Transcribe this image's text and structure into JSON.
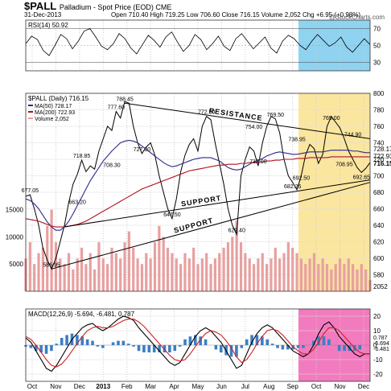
{
  "header": {
    "symbol": "$PALL",
    "subtitle": "Palladium - Spot Price (EOD)  CME",
    "date": "31-Dec-2013",
    "ohlc": "Open 710.40  High 719.25  Low 706.60  Close 716.15  Volume 2,052  Chg +6.95 (+0.98%)",
    "brand": "@StockCharts.com"
  },
  "colors": {
    "price": "#000000",
    "ma50": "#2a2a8c",
    "ma200": "#b01020",
    "volume": "#e8a0a0",
    "rsi_zone": "#8fd3f0",
    "price_zone": "#fbe6a0",
    "macd_zone": "#f27bbf",
    "macd_hist": "#3b7fc4",
    "macd_signal": "#d02020"
  },
  "chart_data": [
    {
      "type": "line",
      "name": "rsi",
      "label": "RSI(14) 50.92",
      "ylim": [
        20,
        80
      ],
      "y_ticks": [
        30,
        50,
        70
      ],
      "overbought": 70,
      "oversold": 30,
      "series": [
        {
          "name": "RSI(14)",
          "values": [
            52,
            61,
            57,
            44,
            38,
            50,
            63,
            58,
            46,
            55,
            67,
            70,
            60,
            49,
            45,
            52,
            64,
            58,
            47,
            40,
            51,
            62,
            56,
            48,
            60,
            66,
            54,
            43,
            50,
            63,
            57,
            45,
            52,
            61,
            49,
            44,
            58,
            64,
            55,
            46,
            53,
            60,
            47,
            41,
            55,
            62,
            58,
            50,
            45,
            55,
            63,
            56,
            49,
            53,
            60,
            48,
            42,
            50,
            58,
            51
          ]
        }
      ]
    },
    {
      "type": "line",
      "name": "price",
      "label": "$PALL (Daily) 716.15",
      "ylim": [
        560,
        800
      ],
      "y_ticks": [
        580,
        600,
        620,
        640,
        660,
        680,
        700,
        720,
        740,
        760,
        780,
        800
      ],
      "x_ticks": [
        "Oct",
        "Nov",
        "Dec",
        "2013",
        "Feb",
        "Mar",
        "Apr",
        "May",
        "Jun",
        "Jul",
        "Aug",
        "Sep",
        "Oct",
        "Nov",
        "Dec"
      ],
      "legend": [
        {
          "name": "MA(50) 728.17",
          "color": "#2a2a8c"
        },
        {
          "name": "MA(200) 722.93",
          "color": "#b01020"
        },
        {
          "name": "Volume 2,052",
          "color": "#e8a0a0"
        }
      ],
      "series": [
        {
          "name": "$PALL",
          "values": [
            675,
            677,
            660,
            640,
            612,
            598,
            587,
            600,
            620,
            640,
            668,
            690,
            702,
            719,
            705,
            712,
            708,
            730,
            745,
            760,
            755,
            778,
            770,
            790,
            788,
            760,
            740,
            727,
            735,
            740,
            725,
            700,
            680,
            660,
            648,
            672,
            705,
            725,
            738,
            745,
            730,
            760,
            772,
            768,
            740,
            715,
            690,
            660,
            640,
            629,
            700,
            720,
            735,
            730,
            712,
            740,
            760,
            772,
            769,
            752,
            720,
            700,
            692,
            683,
            700,
            725,
            738,
            733,
            715,
            726,
            760,
            772,
            765,
            758,
            745,
            730,
            720,
            710,
            704,
            709,
            716
          ]
        },
        {
          "name": "MA(50)",
          "values": [
            672,
            670,
            666,
            660,
            652,
            644,
            638,
            634,
            634,
            638,
            645,
            654,
            664,
            674,
            684,
            694,
            702,
            710,
            718,
            724,
            730,
            735,
            740,
            742,
            743,
            742,
            740,
            736,
            732,
            728,
            724,
            720,
            716,
            713,
            711,
            712,
            714,
            716,
            718,
            720,
            721,
            722,
            722,
            722,
            720,
            718,
            714,
            710,
            708,
            707,
            708,
            711,
            714,
            717,
            719,
            721,
            724,
            726,
            728,
            729,
            728,
            727,
            726,
            726,
            727,
            728,
            729,
            729,
            729,
            729,
            730,
            731,
            731,
            731,
            731,
            731,
            730,
            730,
            729,
            728,
            728
          ]
        },
        {
          "name": "MA(200)",
          "values": [
            648,
            647,
            646,
            645,
            643,
            641,
            639,
            638,
            638,
            638,
            639,
            640,
            641,
            643,
            645,
            648,
            651,
            654,
            657,
            660,
            663,
            666,
            669,
            672,
            675,
            678,
            681,
            684,
            686,
            688,
            690,
            692,
            694,
            696,
            698,
            700,
            702,
            704,
            706,
            707,
            708,
            709,
            710,
            711,
            712,
            713,
            713,
            714,
            714,
            714,
            715,
            715,
            716,
            716,
            717,
            717,
            718,
            718,
            719,
            719,
            720,
            720,
            720,
            721,
            721,
            721,
            722,
            722,
            722,
            722,
            722,
            723,
            723,
            723,
            723,
            723,
            723,
            723,
            723,
            723,
            723
          ]
        }
      ],
      "volume_ylim": [
        0,
        20000
      ],
      "volume_ticks": [
        5000,
        10000,
        15000
      ],
      "volume_last_label": "2052",
      "volume": [
        6000,
        9000,
        5000,
        7000,
        8000,
        12000,
        15000,
        9000,
        6000,
        5000,
        7000,
        4000,
        6000,
        8000,
        5000,
        7000,
        4000,
        9000,
        6000,
        5000,
        8000,
        7000,
        6000,
        9000,
        11000,
        8000,
        6000,
        5000,
        7000,
        6000,
        9000,
        12000,
        10000,
        8000,
        7000,
        6000,
        5000,
        7000,
        6000,
        8000,
        5000,
        6000,
        7000,
        5000,
        6000,
        7000,
        8000,
        9000,
        10000,
        13000,
        9000,
        7000,
        6000,
        5000,
        6000,
        7000,
        5000,
        6000,
        8000,
        6000,
        7000,
        9000,
        8000,
        7000,
        6000,
        5000,
        6000,
        7000,
        5000,
        6000,
        5000,
        4000,
        5000,
        6000,
        5000,
        6000,
        5000,
        4000,
        5000,
        4000,
        2052
      ],
      "annotations": [
        {
          "text": "677.05",
          "x": 1,
          "y": 677
        },
        {
          "text": "586.95",
          "x": 6,
          "y": 587
        },
        {
          "text": "663.20",
          "x": 12,
          "y": 663
        },
        {
          "text": "718.85",
          "x": 13,
          "y": 719
        },
        {
          "text": "777.60",
          "x": 21,
          "y": 778
        },
        {
          "text": "788.45",
          "x": 23,
          "y": 788
        },
        {
          "text": "708.30",
          "x": 20,
          "y": 708
        },
        {
          "text": "727.30",
          "x": 27,
          "y": 727
        },
        {
          "text": "647.50",
          "x": 34,
          "y": 648
        },
        {
          "text": "772.50",
          "x": 42,
          "y": 772
        },
        {
          "text": "629.40",
          "x": 49,
          "y": 629
        },
        {
          "text": "754.00",
          "x": 53,
          "y": 754
        },
        {
          "text": "712.00",
          "x": 54,
          "y": 712
        },
        {
          "text": "769.50",
          "x": 58,
          "y": 769
        },
        {
          "text": "738.95",
          "x": 63,
          "y": 739
        },
        {
          "text": "682.25",
          "x": 62,
          "y": 682
        },
        {
          "text": "692.50",
          "x": 64,
          "y": 692
        },
        {
          "text": "765.00",
          "x": 71,
          "y": 765
        },
        {
          "text": "744.90",
          "x": 76,
          "y": 745
        },
        {
          "text": "708.95",
          "x": 74,
          "y": 709
        },
        {
          "text": "692.65",
          "x": 78,
          "y": 693
        }
      ],
      "trendlines": [
        {
          "label": "RESISTANCE",
          "from": [
            23,
            788
          ],
          "to": [
            80,
            745
          ]
        },
        {
          "label": "SUPPORT",
          "from": [
            9,
            638
          ],
          "to": [
            80,
            695
          ]
        },
        {
          "label": "SUPPORT",
          "from": [
            6,
            587
          ],
          "to": [
            80,
            692
          ]
        }
      ],
      "last_value_labels": [
        "728.17",
        "722.93",
        "716.15"
      ]
    },
    {
      "type": "line",
      "name": "macd",
      "label": "MACD(12,26,9) -5.694, -6.481, 0.787",
      "ylim": [
        -25,
        25
      ],
      "y_ticks": [
        -20,
        -10,
        0,
        10,
        20
      ],
      "series": [
        {
          "name": "MACD",
          "values": [
            5,
            2,
            -4,
            -10,
            -16,
            -18,
            -14,
            -8,
            -2,
            4,
            8,
            12,
            14,
            15,
            12,
            10,
            12,
            15,
            18,
            20,
            19,
            17,
            12,
            8,
            4,
            0,
            -4,
            -8,
            -12,
            -14,
            -12,
            -6,
            0,
            6,
            10,
            12,
            10,
            6,
            2,
            -4,
            -10,
            -16,
            -14,
            -6,
            2,
            8,
            12,
            14,
            12,
            8,
            4,
            0,
            -4,
            -6,
            -8,
            -6,
            0,
            8,
            14,
            16,
            12,
            6,
            2,
            -2,
            -6,
            -8,
            -6,
            -6
          ]
        },
        {
          "name": "Signal",
          "values": [
            6,
            4,
            0,
            -5,
            -10,
            -14,
            -15,
            -13,
            -9,
            -4,
            1,
            6,
            10,
            12,
            13,
            12,
            12,
            13,
            15,
            17,
            18,
            18,
            16,
            13,
            9,
            5,
            1,
            -3,
            -7,
            -10,
            -11,
            -10,
            -6,
            -1,
            4,
            8,
            10,
            9,
            7,
            3,
            -2,
            -8,
            -12,
            -10,
            -5,
            1,
            6,
            10,
            11,
            10,
            7,
            3,
            -1,
            -4,
            -6,
            -6,
            -3,
            2,
            8,
            12,
            12,
            10,
            6,
            2,
            -2,
            -5,
            -6,
            -6
          ]
        }
      ],
      "last_value_labels": [
        "0.787",
        "-5.694",
        "-6.481"
      ]
    }
  ]
}
